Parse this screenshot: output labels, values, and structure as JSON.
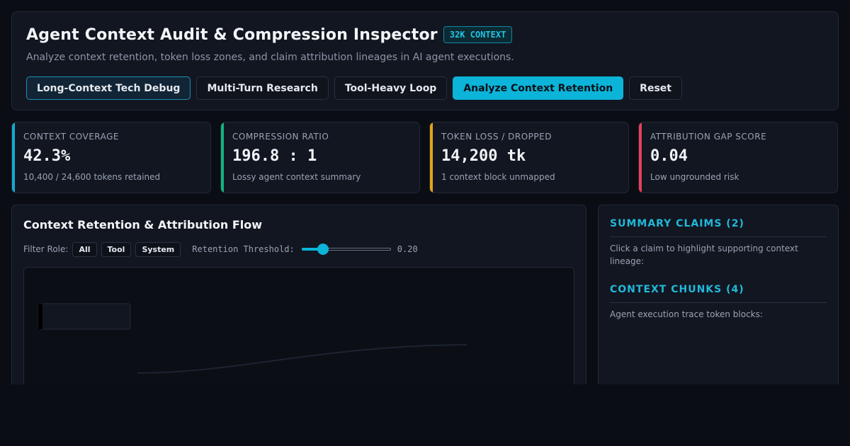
{
  "header": {
    "title": "Agent Context Audit & Compression Inspector",
    "context_badge": "32K CONTEXT",
    "subtitle": "Analyze context retention, token loss zones, and claim attribution lineages in AI agent executions.",
    "buttons": [
      {
        "label": "Long-Context Tech Debug",
        "state": "selected"
      },
      {
        "label": "Multi-Turn Research",
        "state": "default"
      },
      {
        "label": "Tool-Heavy Loop",
        "state": "default"
      },
      {
        "label": "Analyze Context Retention",
        "state": "primary"
      },
      {
        "label": "Reset",
        "state": "default"
      }
    ]
  },
  "metrics": [
    {
      "label": "Context Coverage",
      "value": "42.3%",
      "sub": "10,400 / 24,600 tokens retained",
      "accent": "#16a9cf"
    },
    {
      "label": "Compression Ratio",
      "value": "196.8 : 1",
      "sub": "Lossy agent context summary",
      "accent": "#14b37d"
    },
    {
      "label": "Token Loss / Dropped",
      "value": "14,200 tk",
      "sub": "1 context block unmapped",
      "accent": "#e3a21a"
    },
    {
      "label": "Attribution Gap Score",
      "value": "0.04",
      "sub": "Low ungrounded risk",
      "accent": "#e8405a"
    }
  ],
  "flow": {
    "title": "Context Retention & Attribution Flow",
    "filter_label": "Filter Role:",
    "filters": [
      "All",
      "Tool",
      "System"
    ],
    "threshold_label": "Retention Threshold:",
    "threshold_value": "0.20",
    "threshold_fraction": 0.2
  },
  "side": {
    "claims_heading": "SUMMARY CLAIMS (2)",
    "claims_text": "Click a claim to highlight supporting context lineage:",
    "chunks_heading": "CONTEXT CHUNKS (4)",
    "chunks_text": "Agent execution trace token blocks:"
  }
}
